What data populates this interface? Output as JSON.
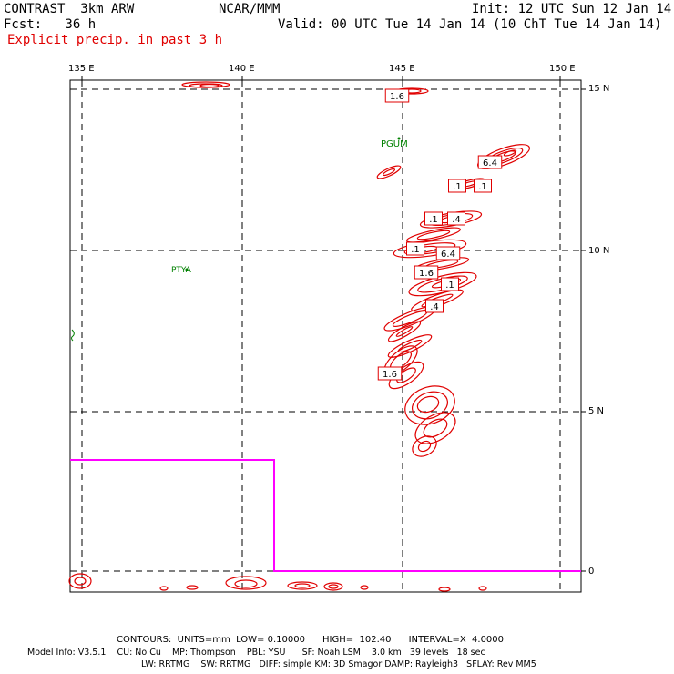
{
  "header": {
    "model": "CONTRAST  3km ARW",
    "center": "NCAR/MMM",
    "init": "Init: 12 UTC Sun 12 Jan 14",
    "fcst": "Fcst:   36 h",
    "valid": "Valid: 00 UTC Tue 14 Jan 14 (10 ChT Tue 14 Jan 14)",
    "field": "Explicit precip. in past 3 h"
  },
  "axes": {
    "lon_labels": [
      "135 E",
      "140 E",
      "145 E",
      "150 E"
    ],
    "lat_labels": [
      "15 N",
      "10 N",
      "5 N",
      "0"
    ]
  },
  "stations": [
    "PGUM",
    "PTYA"
  ],
  "contour_labels": [
    "6.4",
    ".1",
    ".1",
    ".1",
    ".4",
    ".1",
    "6.4",
    "1.6",
    ".1",
    "1.6",
    ".4",
    "1.6"
  ],
  "footer": {
    "contours": "CONTOURS:  UNITS=mm  LOW= 0.10000      HIGH=  102.40      INTERVAL=X  4.0000",
    "info1": "Model Info: V3.5.1    CU: No Cu    MP: Thompson    PBL: YSU      SF: Noah LSM    3.0 km   39 levels   18 sec",
    "info2": "LW: RRTMG    SW: RRTMG   DIFF: simple KM: 3D Smagor DAMP: Rayleigh3   SFLAY: Rev MM5"
  },
  "colors": {
    "precip": "#e00000",
    "boundary": "#ff00ff",
    "station": "#008000",
    "frame": "#000000"
  }
}
